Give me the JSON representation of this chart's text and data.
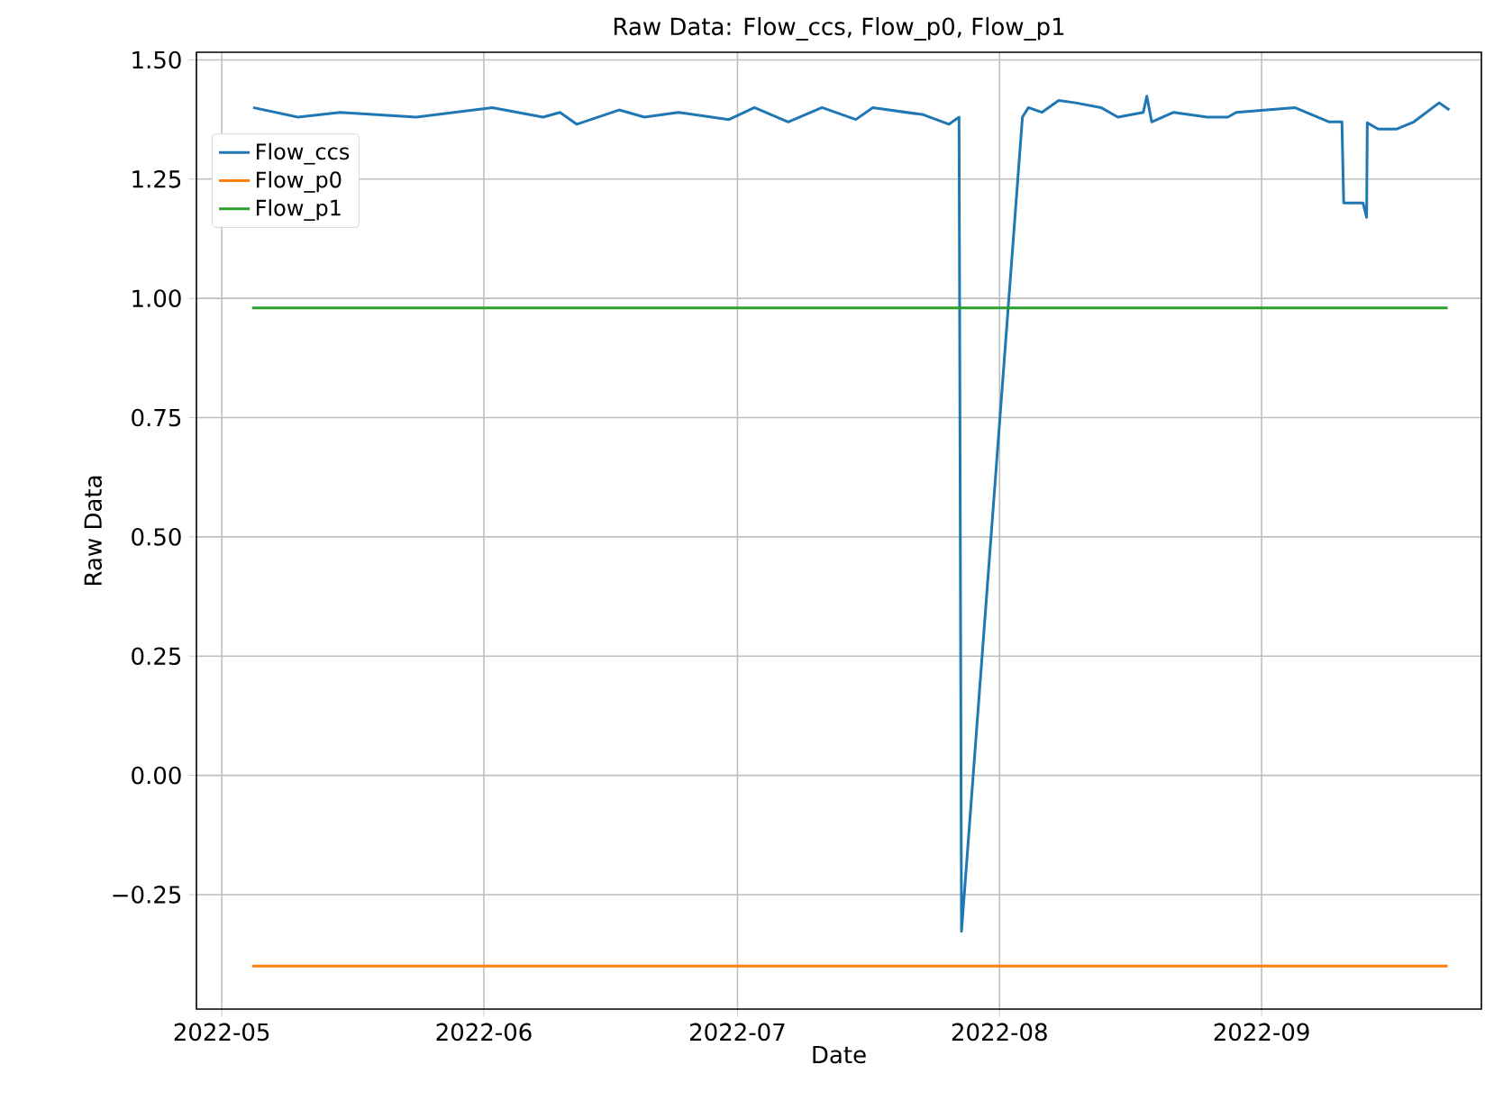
{
  "chart_data": {
    "type": "line",
    "title": "Raw Data: Flow_ccs, Flow_p0, Flow_p1",
    "xlabel": "Date",
    "ylabel": "Raw Data",
    "xlim": [
      "2022-04-28",
      "2022-09-27"
    ],
    "ylim": [
      -0.49,
      1.516
    ],
    "xticks": [
      {
        "value": "2022-05-01",
        "label": "2022-05"
      },
      {
        "value": "2022-06-01",
        "label": "2022-06"
      },
      {
        "value": "2022-07-01",
        "label": "2022-07"
      },
      {
        "value": "2022-08-01",
        "label": "2022-08"
      },
      {
        "value": "2022-09-01",
        "label": "2022-09"
      }
    ],
    "yticks": [
      {
        "value": -0.25,
        "label": "−0.25"
      },
      {
        "value": 0,
        "label": "0.00"
      },
      {
        "value": 0.25,
        "label": "0.25"
      },
      {
        "value": 0.5,
        "label": "0.50"
      },
      {
        "value": 0.75,
        "label": "0.75"
      },
      {
        "value": 1.0,
        "label": "1.00"
      },
      {
        "value": 1.25,
        "label": "1.25"
      },
      {
        "value": 1.5,
        "label": "1.50"
      }
    ],
    "grid": true,
    "legend": "top left",
    "series": [
      {
        "name": "Flow_ccs",
        "color": "#1f77b4",
        "x": [
          "2022-05-04T17:00",
          "2022-05-10",
          "2022-05-15",
          "2022-05-24",
          "2022-06-02",
          "2022-06-08",
          "2022-06-10",
          "2022-06-12",
          "2022-06-17",
          "2022-06-20",
          "2022-06-24",
          "2022-06-30",
          "2022-07-03",
          "2022-07-07",
          "2022-07-11",
          "2022-07-15",
          "2022-07-17",
          "2022-07-23",
          "2022-07-26",
          "2022-07-27T05:00",
          "2022-07-27T12:00",
          "2022-08-03T17:00",
          "2022-08-04T10:00",
          "2022-08-06",
          "2022-08-08",
          "2022-08-10",
          "2022-08-13",
          "2022-08-15",
          "2022-08-18",
          "2022-08-18T10:00",
          "2022-08-19",
          "2022-08-21T14:00",
          "2022-08-25T14:00",
          "2022-08-28",
          "2022-08-29",
          "2022-09-04T22:00",
          "2022-09-09",
          "2022-09-10T12:00",
          "2022-09-10T17:00",
          "2022-09-13",
          "2022-09-13T10:00",
          "2022-09-13T12:00",
          "2022-09-14T19:00",
          "2022-09-17",
          "2022-09-19",
          "2022-09-22",
          "2022-09-23T05:00"
        ],
        "values": [
          1.4,
          1.38,
          1.39,
          1.38,
          1.4,
          1.38,
          1.39,
          1.365,
          1.395,
          1.38,
          1.39,
          1.375,
          1.4,
          1.37,
          1.4,
          1.375,
          1.4,
          1.385,
          1.365,
          1.38,
          -0.327,
          1.38,
          1.4,
          1.39,
          1.415,
          1.41,
          1.4,
          1.38,
          1.39,
          1.424,
          1.37,
          1.39,
          1.38,
          1.38,
          1.39,
          1.4,
          1.37,
          1.37,
          1.2,
          1.2,
          1.17,
          1.368,
          1.355,
          1.355,
          1.37,
          1.41,
          1.395
        ]
      },
      {
        "name": "Flow_p0",
        "color": "#ff7f0e",
        "x": [
          "2022-05-04T14:00",
          "2022-09-23"
        ],
        "values": [
          -0.4,
          -0.4
        ]
      },
      {
        "name": "Flow_p1",
        "color": "#2ca02c",
        "x": [
          "2022-05-04T14:00",
          "2022-09-23"
        ],
        "values": [
          0.98,
          0.98
        ]
      }
    ]
  }
}
